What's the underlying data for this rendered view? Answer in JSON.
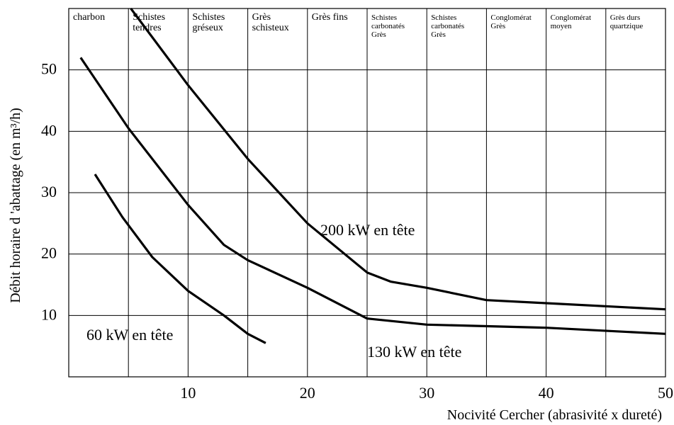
{
  "chart_data": {
    "type": "line",
    "title": "",
    "xlabel": "Nocivité Cercher (abrasivité x dureté)",
    "ylabel": "Débit horaire d 'abattage (en m³/h)",
    "xlim": [
      0,
      50
    ],
    "ylim": [
      0,
      60
    ],
    "x_ticks": [
      10,
      20,
      30,
      40,
      50
    ],
    "y_ticks": [
      10,
      20,
      30,
      40,
      50
    ],
    "grid": true,
    "rock_zones": [
      {
        "lines": [
          "charbon"
        ],
        "x_end": 5
      },
      {
        "lines": [
          "Schistes",
          "tendres"
        ],
        "x_end": 10
      },
      {
        "lines": [
          "Schistes",
          "gréseux"
        ],
        "x_end": 15
      },
      {
        "lines": [
          "Grès",
          "schisteux"
        ],
        "x_end": 20
      },
      {
        "lines": [
          "Grès fins"
        ],
        "x_end": 25
      },
      {
        "lines": [
          "Schistes",
          "carbonatés",
          "Grès"
        ],
        "x_end": 30
      },
      {
        "lines": [
          "Schistes",
          "carbonatés",
          "Grès"
        ],
        "x_end": 35
      },
      {
        "lines": [
          "Conglomérat",
          "Grès"
        ],
        "x_end": 40
      },
      {
        "lines": [
          "Conglomérat",
          "moyen"
        ],
        "x_end": 45
      },
      {
        "lines": [
          "Grès durs",
          "quartzique"
        ],
        "x_end": 50
      }
    ],
    "series": [
      {
        "name": "60 kW en tête",
        "x": [
          2.2,
          4.5,
          7,
          10,
          13,
          15,
          16.5
        ],
        "y": [
          33,
          26,
          19.5,
          14,
          10,
          7,
          5.5
        ]
      },
      {
        "name": "130 kW en tête",
        "x": [
          1,
          5,
          10,
          13,
          15,
          20,
          25,
          30,
          40,
          50
        ],
        "y": [
          52,
          40.5,
          28,
          21.5,
          19,
          14.5,
          9.5,
          8.5,
          8,
          7
        ]
      },
      {
        "name": "200 kW en tête",
        "x": [
          5.2,
          10,
          15,
          20,
          25,
          27,
          30,
          35,
          40,
          50
        ],
        "y": [
          60,
          47.5,
          35.5,
          25,
          17,
          15.5,
          14.5,
          12.5,
          12,
          11
        ]
      }
    ]
  }
}
